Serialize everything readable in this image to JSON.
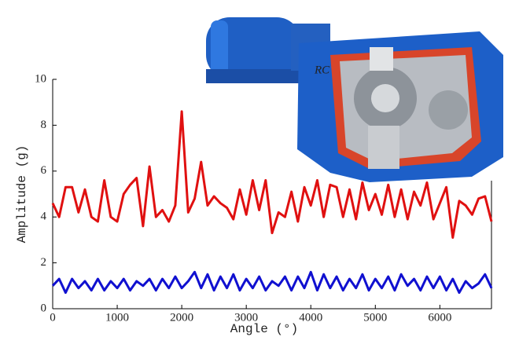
{
  "chart_data": {
    "type": "line",
    "x_label": "Angle (°)",
    "y_label": "Amplitude (g)",
    "xlim": [
      0,
      6800
    ],
    "ylim": [
      0,
      10
    ],
    "xticks": [
      0,
      1000,
      2000,
      3000,
      4000,
      5000,
      6000
    ],
    "yticks": [
      0,
      2,
      4,
      6,
      8,
      10
    ],
    "x": [
      0,
      100,
      200,
      300,
      400,
      500,
      600,
      700,
      800,
      900,
      1000,
      1100,
      1200,
      1300,
      1400,
      1500,
      1600,
      1700,
      1800,
      1900,
      2000,
      2100,
      2200,
      2300,
      2400,
      2500,
      2600,
      2700,
      2800,
      2900,
      3000,
      3100,
      3200,
      3300,
      3400,
      3500,
      3600,
      3700,
      3800,
      3900,
      4000,
      4100,
      4200,
      4300,
      4400,
      4500,
      4600,
      4700,
      4800,
      4900,
      5000,
      5100,
      5200,
      5300,
      5400,
      5500,
      5600,
      5700,
      5800,
      5900,
      6000,
      6100,
      6200,
      6300,
      6400,
      6500,
      6600,
      6700,
      6800
    ],
    "series": [
      {
        "color": "#e01010",
        "values": [
          4.6,
          4.0,
          5.3,
          5.3,
          4.2,
          5.2,
          4.0,
          3.8,
          5.6,
          4.0,
          3.8,
          5.0,
          5.4,
          5.7,
          3.6,
          6.2,
          4.0,
          4.3,
          3.8,
          4.5,
          8.6,
          4.2,
          4.8,
          6.4,
          4.5,
          4.9,
          4.6,
          4.4,
          3.9,
          5.2,
          4.1,
          5.6,
          4.3,
          5.6,
          3.3,
          4.2,
          4.0,
          5.1,
          3.8,
          5.3,
          4.5,
          5.6,
          4.0,
          5.4,
          5.3,
          4.0,
          5.2,
          3.9,
          5.5,
          4.3,
          5.0,
          4.1,
          5.4,
          4.0,
          5.2,
          3.9,
          5.1,
          4.5,
          5.5,
          3.9,
          4.6,
          5.3,
          3.1,
          4.7,
          4.5,
          4.1,
          4.8,
          4.9,
          3.8
        ]
      },
      {
        "color": "#1010d0",
        "values": [
          1.0,
          1.3,
          0.7,
          1.3,
          0.9,
          1.2,
          0.8,
          1.3,
          0.8,
          1.2,
          0.9,
          1.3,
          0.8,
          1.2,
          1.0,
          1.3,
          0.8,
          1.3,
          0.9,
          1.4,
          0.9,
          1.2,
          1.6,
          0.9,
          1.5,
          0.8,
          1.4,
          0.9,
          1.5,
          0.8,
          1.3,
          0.9,
          1.4,
          0.8,
          1.2,
          1.0,
          1.4,
          0.8,
          1.4,
          0.9,
          1.6,
          0.8,
          1.5,
          0.9,
          1.4,
          0.8,
          1.3,
          0.9,
          1.5,
          0.8,
          1.3,
          0.9,
          1.4,
          0.8,
          1.5,
          1.0,
          1.3,
          0.8,
          1.4,
          0.9,
          1.4,
          0.8,
          1.3,
          0.7,
          1.2,
          0.9,
          1.1,
          1.5,
          0.9
        ]
      }
    ]
  }
}
